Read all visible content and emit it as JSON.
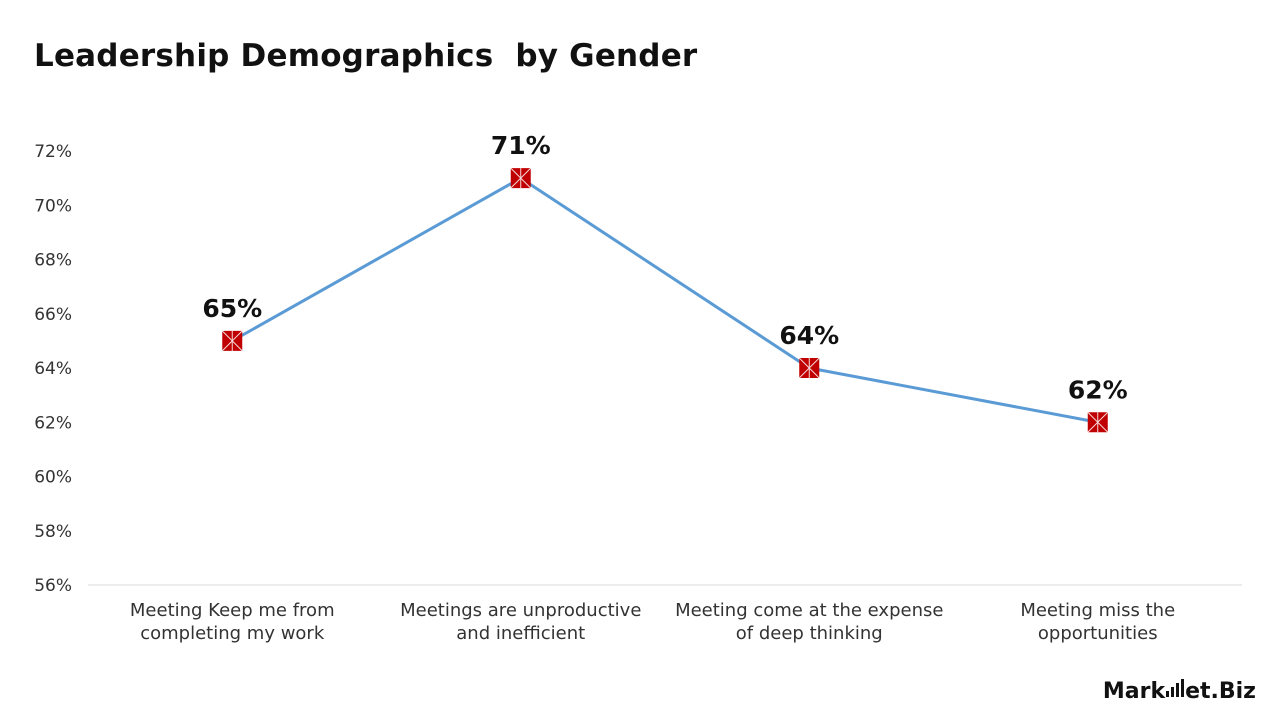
{
  "title": "Leadership Demographics  by Gender",
  "brand": {
    "name_left": "Mark",
    "name_right": "et.Biz"
  },
  "colors": {
    "line": "#5b9bd5",
    "marker": "#c00000",
    "axis": "#d9d9d9"
  },
  "chart_data": {
    "type": "line",
    "title": "Leadership Demographics  by Gender",
    "categories": [
      [
        "Meeting Keep me from",
        "completing my work"
      ],
      [
        "Meetings are unproductive",
        "and inefficient"
      ],
      [
        "Meeting come at the expense",
        "of deep thinking"
      ],
      [
        "Meeting miss the",
        "opportunities"
      ]
    ],
    "values": [
      65,
      71,
      64,
      62
    ],
    "data_labels": [
      "65%",
      "71%",
      "64%",
      "62%"
    ],
    "ylim": [
      56,
      72
    ],
    "yticks": [
      72,
      70,
      68,
      66,
      64,
      62,
      60,
      58,
      56
    ],
    "ytick_labels": [
      "72%",
      "70%",
      "68%",
      "66%",
      "64%",
      "62%",
      "60%",
      "58%",
      "56%"
    ],
    "grid": false,
    "legend": "none",
    "marker": "square"
  }
}
